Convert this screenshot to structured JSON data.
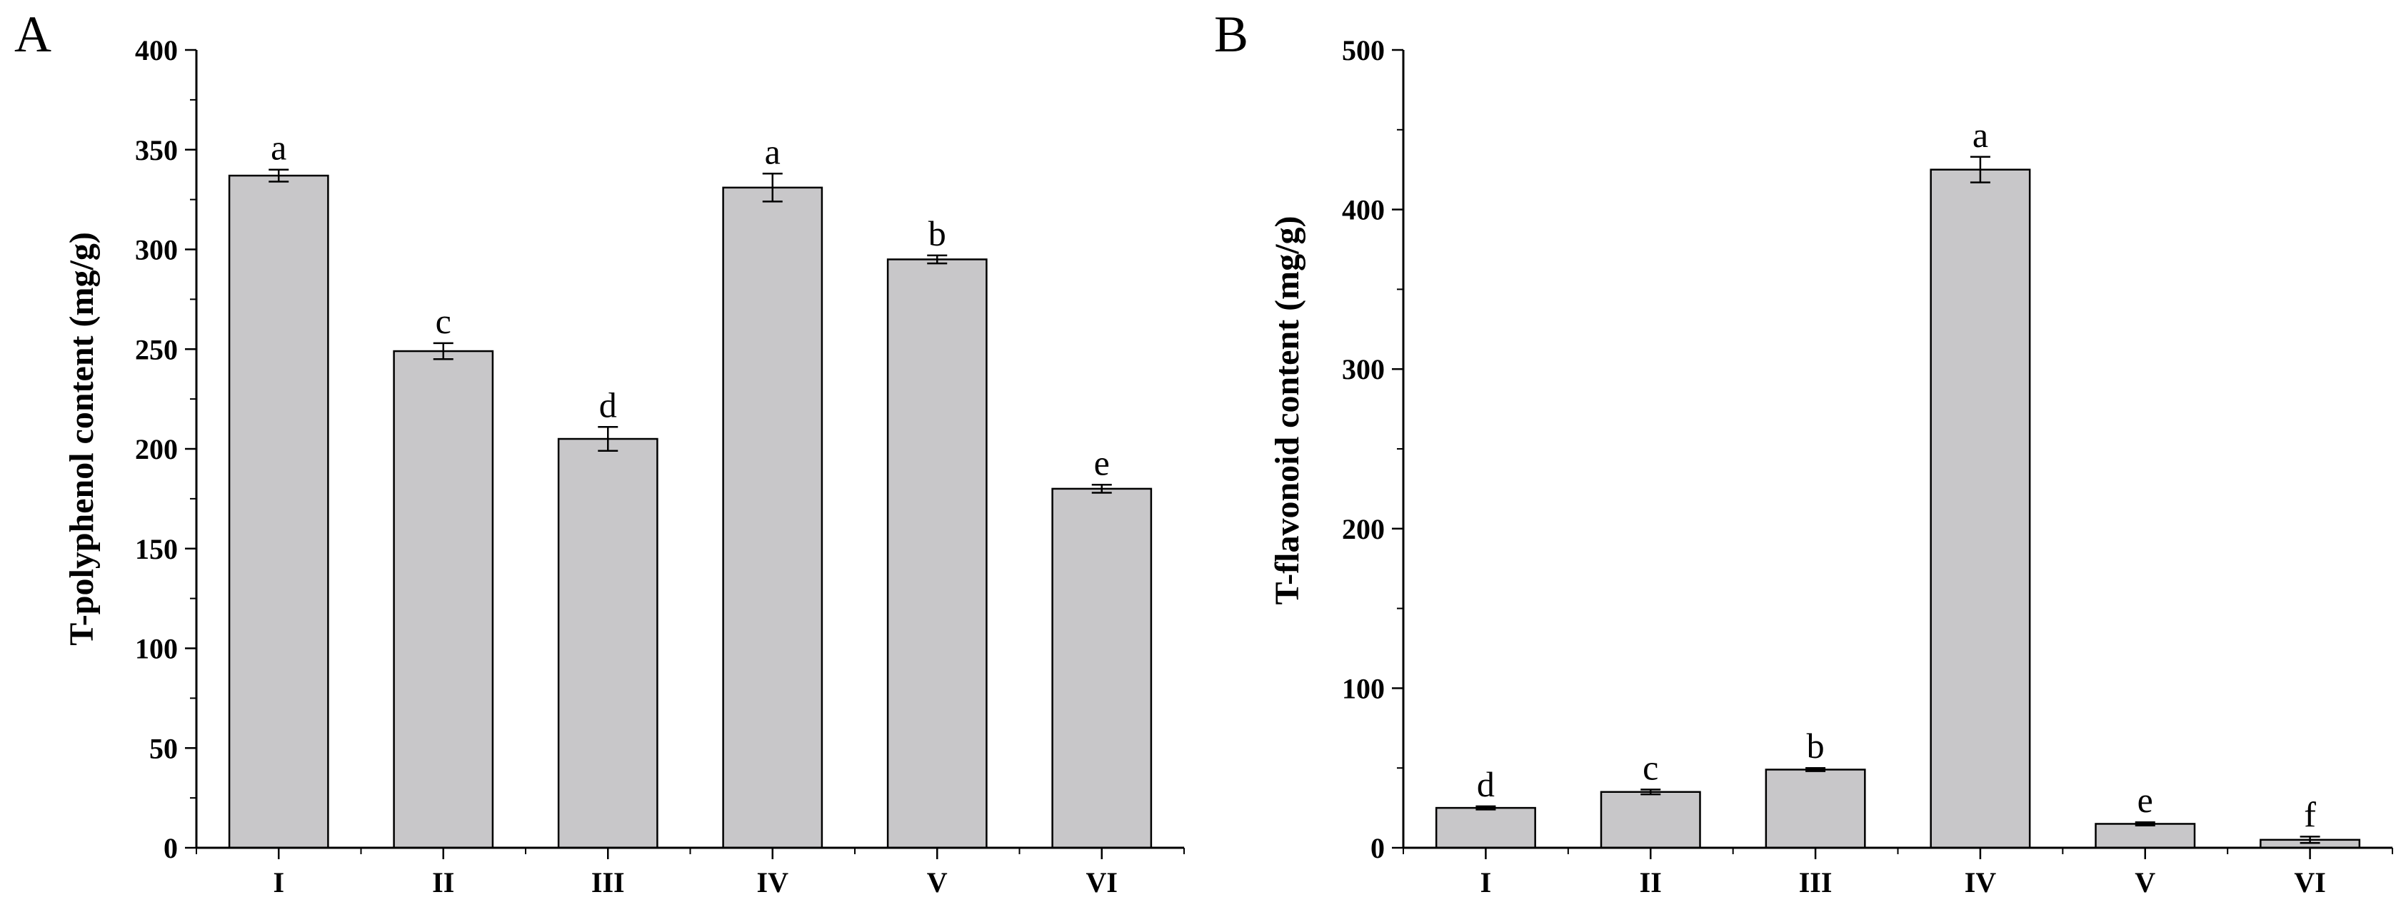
{
  "chart_data": [
    {
      "type": "bar",
      "panel": "A",
      "categories": [
        "I",
        "II",
        "III",
        "IV",
        "V",
        "VI"
      ],
      "values": [
        337,
        249,
        205,
        331,
        295,
        180
      ],
      "errors": [
        3,
        4,
        6,
        7,
        2,
        2
      ],
      "significance": [
        "a",
        "c",
        "d",
        "a",
        "b",
        "e"
      ],
      "xlabel": "",
      "ylabel": "T-polyphenol content (mg/g)",
      "ylim": [
        0,
        400
      ],
      "yticks": [
        0,
        50,
        100,
        150,
        200,
        250,
        300,
        350,
        400
      ],
      "bar_color": "#c8c7c9",
      "grid": false
    },
    {
      "type": "bar",
      "panel": "B",
      "categories": [
        "I",
        "II",
        "III",
        "IV",
        "V",
        "VI"
      ],
      "values": [
        25,
        35,
        49,
        425,
        15,
        5
      ],
      "errors": [
        1,
        1.5,
        1,
        8,
        1,
        2
      ],
      "significance": [
        "d",
        "c",
        "b",
        "a",
        "e",
        "f"
      ],
      "xlabel": "",
      "ylabel": "T-flavonoid content (mg/g)",
      "ylim": [
        0,
        500
      ],
      "yticks": [
        0,
        100,
        200,
        300,
        400,
        500
      ],
      "bar_color": "#c8c7c9",
      "grid": false
    }
  ]
}
